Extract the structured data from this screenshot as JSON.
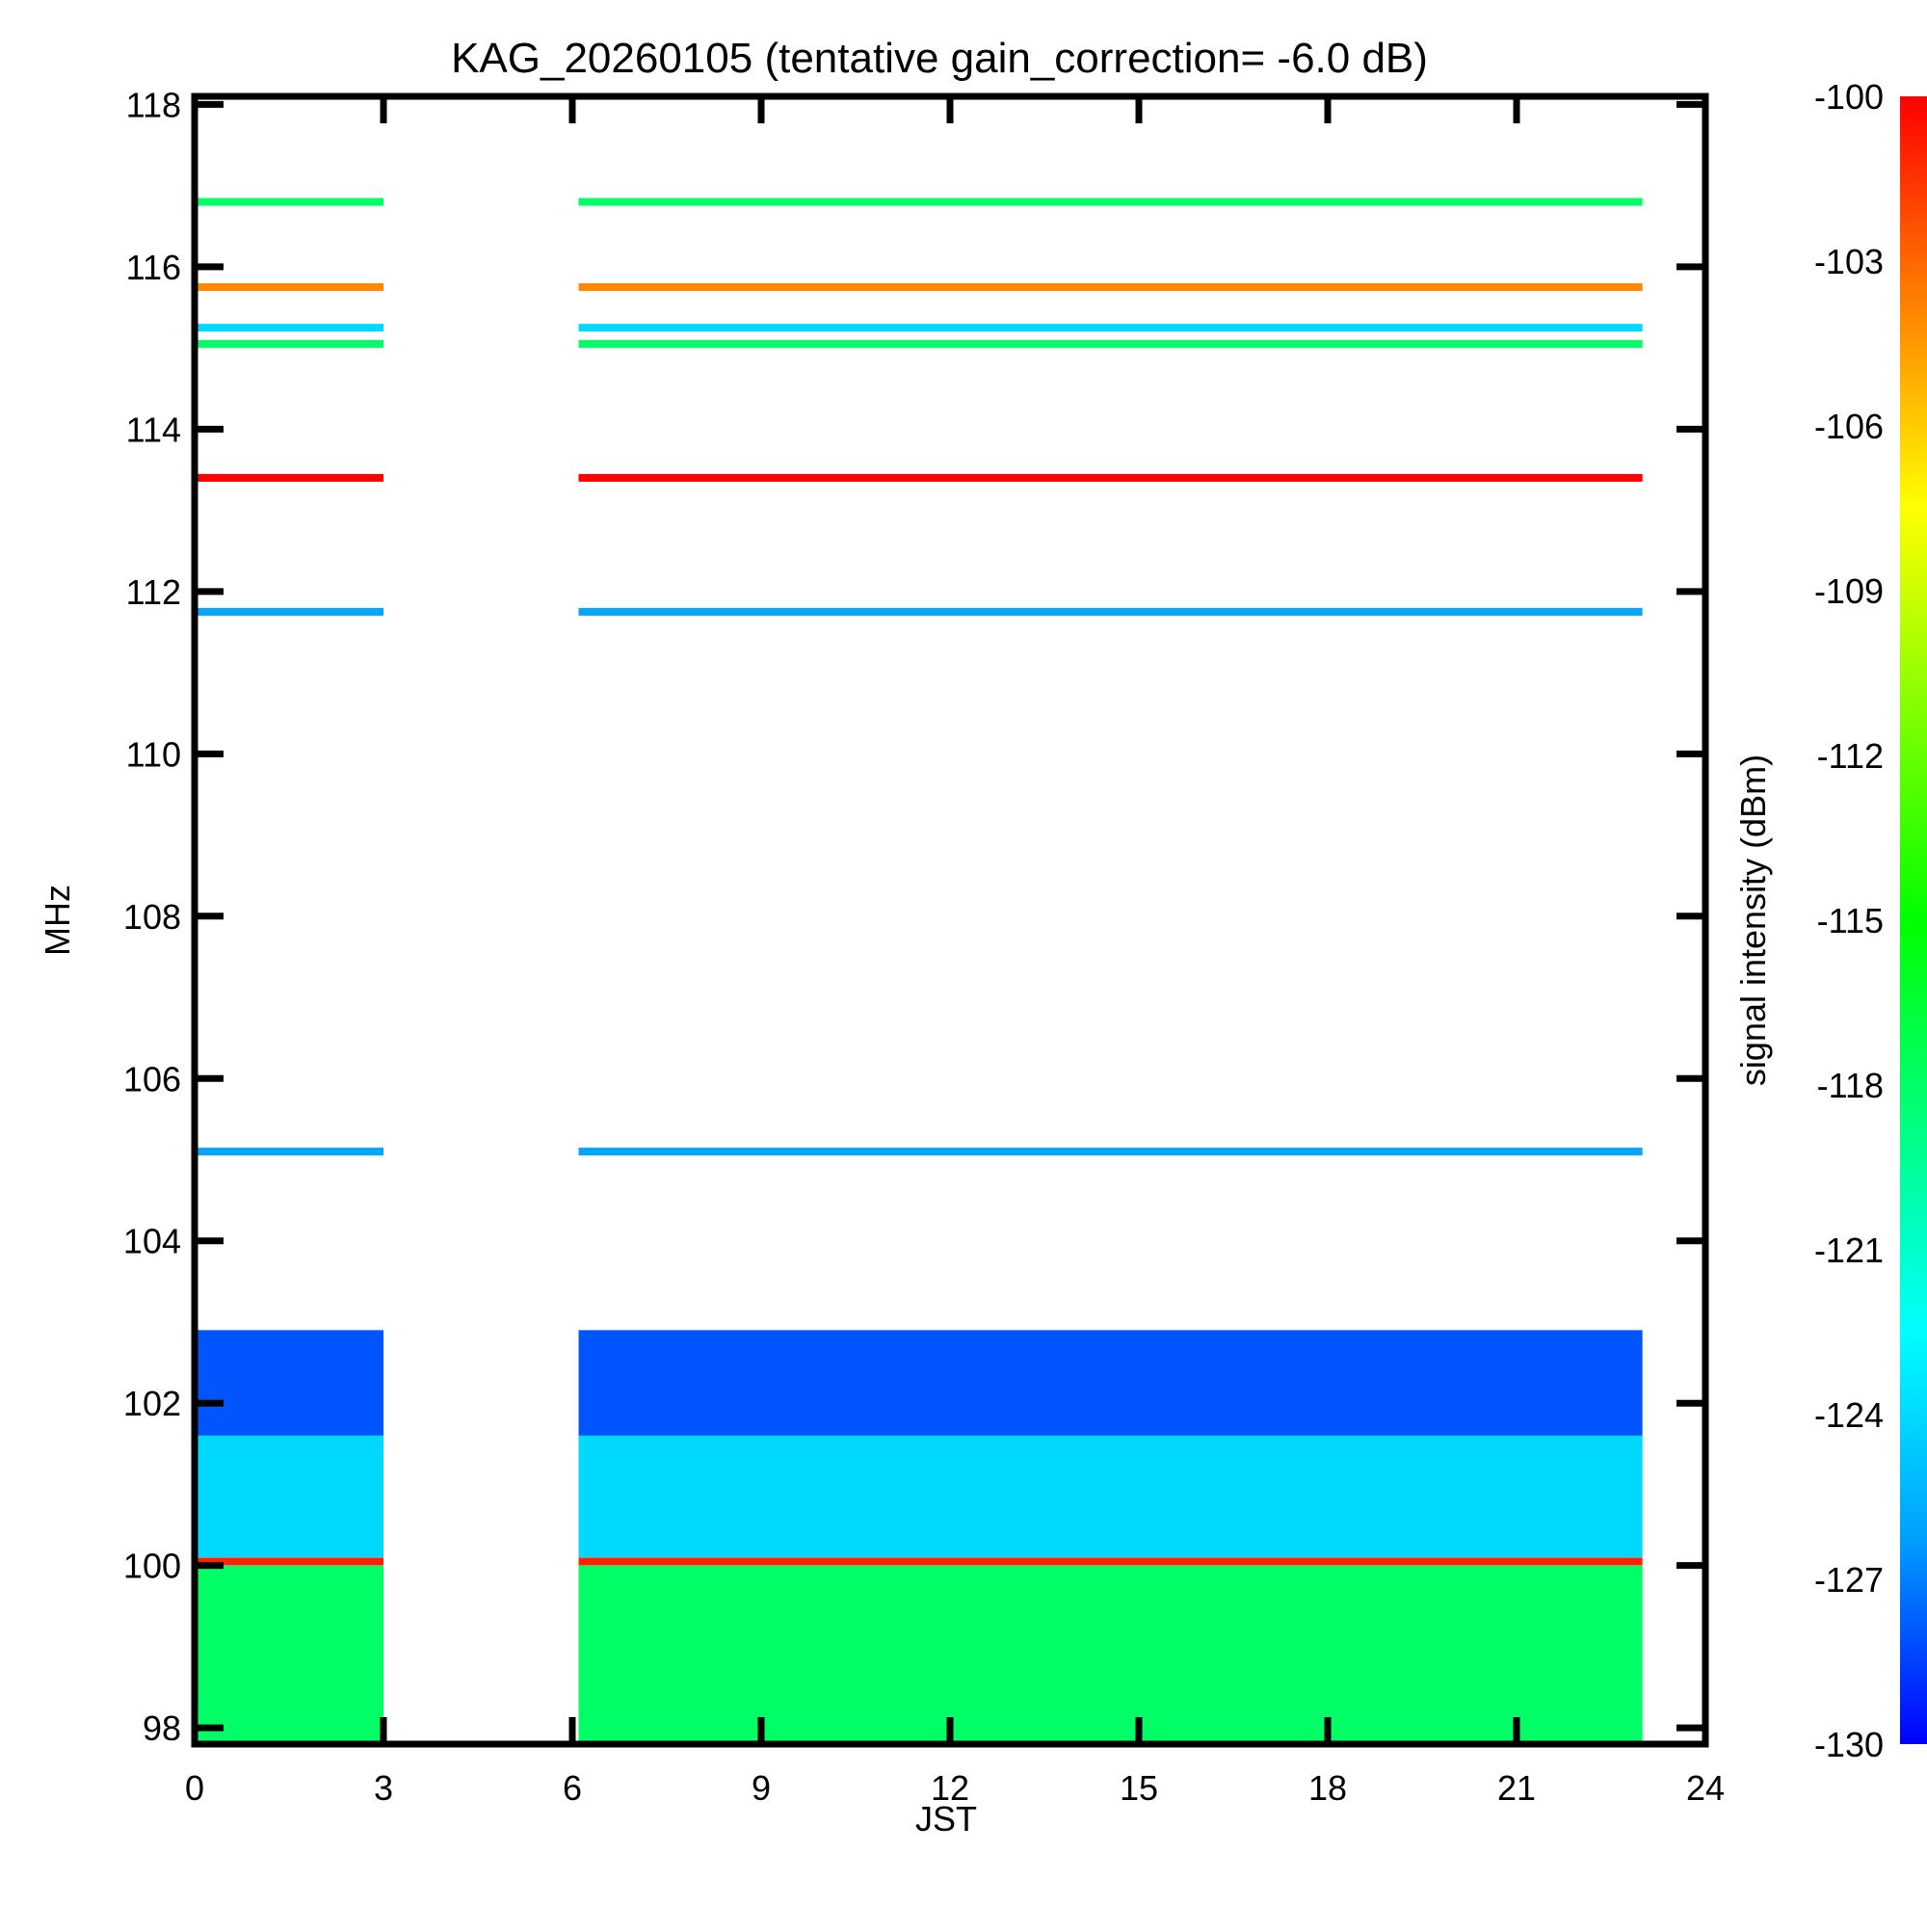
{
  "chart_data": {
    "type": "heatmap",
    "title": "KAG_20260105 (tentative gain_correction= -6.0 dB)",
    "xlabel": "JST",
    "ylabel": "MHz",
    "xlim": [
      0,
      24
    ],
    "ylim": [
      97.8,
      118.1
    ],
    "x_ticks": [
      "0",
      "3",
      "6",
      "9",
      "12",
      "15",
      "18",
      "21",
      "24"
    ],
    "y_ticks": [
      "98",
      "100",
      "102",
      "104",
      "106",
      "108",
      "110",
      "112",
      "114",
      "116",
      "118"
    ],
    "colorbar": {
      "label": "signal intensity (dBm)",
      "range": [
        -130,
        -100
      ],
      "ticks": [
        "-100",
        "-103",
        "-106",
        "-109",
        "-112",
        "-115",
        "-118",
        "-121",
        "-124",
        "-127",
        "-130"
      ],
      "colormap": [
        "#0000ff",
        "#00a0ff",
        "#00ffff",
        "#00ff80",
        "#00ff00",
        "#80ff00",
        "#ffff00",
        "#ff8000",
        "#ff0000"
      ]
    },
    "observation_periods_jst": [
      [
        0,
        3
      ],
      [
        6.1,
        23
      ]
    ],
    "steady_lines": [
      {
        "freq_mhz": 116.8,
        "dbm": -118
      },
      {
        "freq_mhz": 115.75,
        "dbm": -104
      },
      {
        "freq_mhz": 115.25,
        "dbm": -124
      },
      {
        "freq_mhz": 115.05,
        "dbm": -118
      },
      {
        "freq_mhz": 113.4,
        "dbm": -100
      },
      {
        "freq_mhz": 111.75,
        "dbm": -126
      },
      {
        "freq_mhz": 105.1,
        "dbm": -126
      },
      {
        "freq_mhz": 100.05,
        "dbm": -101
      }
    ],
    "background_bands": [
      {
        "freq_range_mhz": [
          101.6,
          102.9
        ],
        "dbm": -128
      },
      {
        "freq_range_mhz": [
          100.1,
          101.6
        ],
        "dbm": -124
      },
      {
        "freq_range_mhz": [
          97.8,
          100.0
        ],
        "dbm": -118
      }
    ]
  }
}
